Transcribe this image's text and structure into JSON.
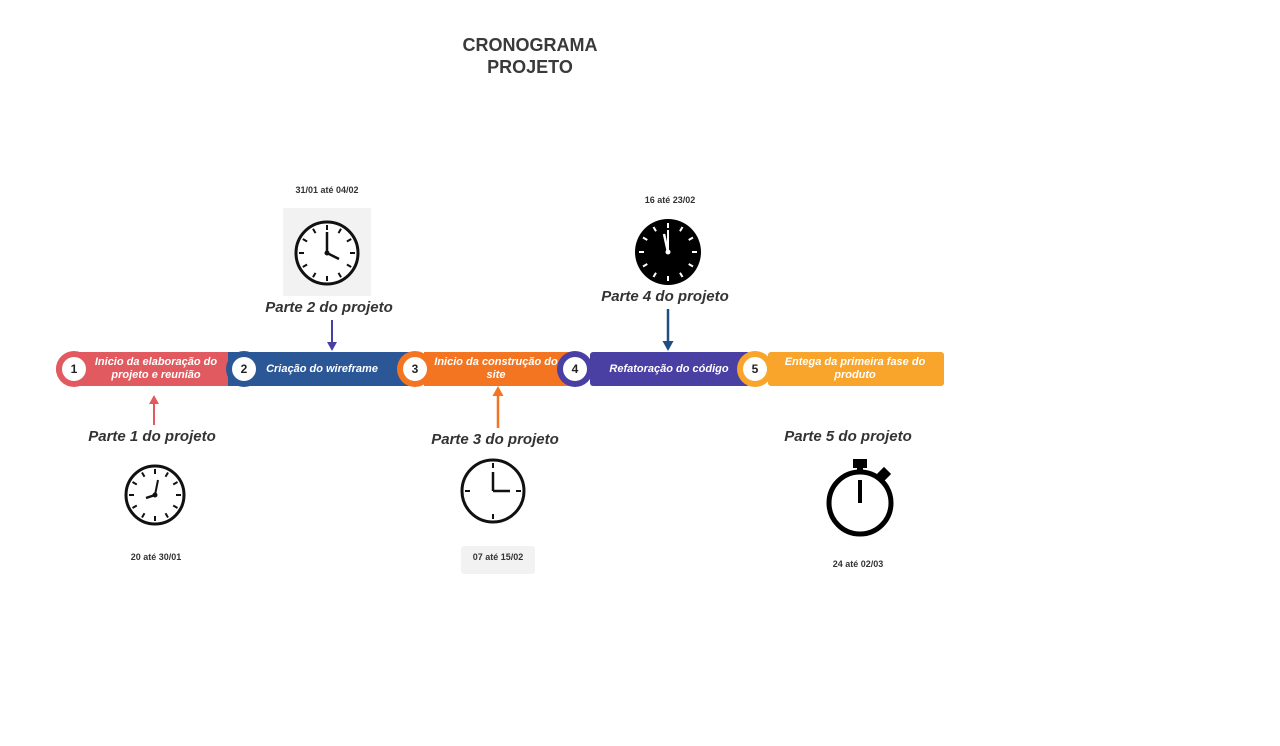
{
  "title_lines": [
    "CRONOGRAMA",
    "PROJETO"
  ],
  "colors": {
    "step1": "#e05a5f",
    "step2": "#2b5797",
    "step3": "#f47521",
    "step4": "#4a3fa3",
    "step5": "#f9a42a",
    "arrow1": "#e05a5f",
    "arrow2": "#4a3fa3",
    "arrow3": "#f47521",
    "arrow4": "#1f4e80"
  },
  "steps": [
    {
      "number": "1",
      "label": "Inicio da elaboração do projeto e reunião"
    },
    {
      "number": "2",
      "label": "Criação do wireframe"
    },
    {
      "number": "3",
      "label": "Inicio da construção do site"
    },
    {
      "number": "4",
      "label": "Refatoração do código"
    },
    {
      "number": "5",
      "label": "Entega da primeira fase do produto"
    }
  ],
  "parts": [
    {
      "label": "Parte 1 do projeto",
      "date": "20 até 30/01",
      "icon": "clock-icon"
    },
    {
      "label": "Parte 2 do projeto",
      "date": "31/01 até 04/02",
      "icon": "clock-icon"
    },
    {
      "label": "Parte 3 do projeto",
      "date": "07 até 15/02",
      "icon": "clock-icon"
    },
    {
      "label": "Parte 4 do projeto",
      "date": "16 até 23/02",
      "icon": "clock-icon"
    },
    {
      "label": "Parte 5 do projeto",
      "date": "24 até 02/03",
      "icon": "stopwatch-icon"
    }
  ]
}
